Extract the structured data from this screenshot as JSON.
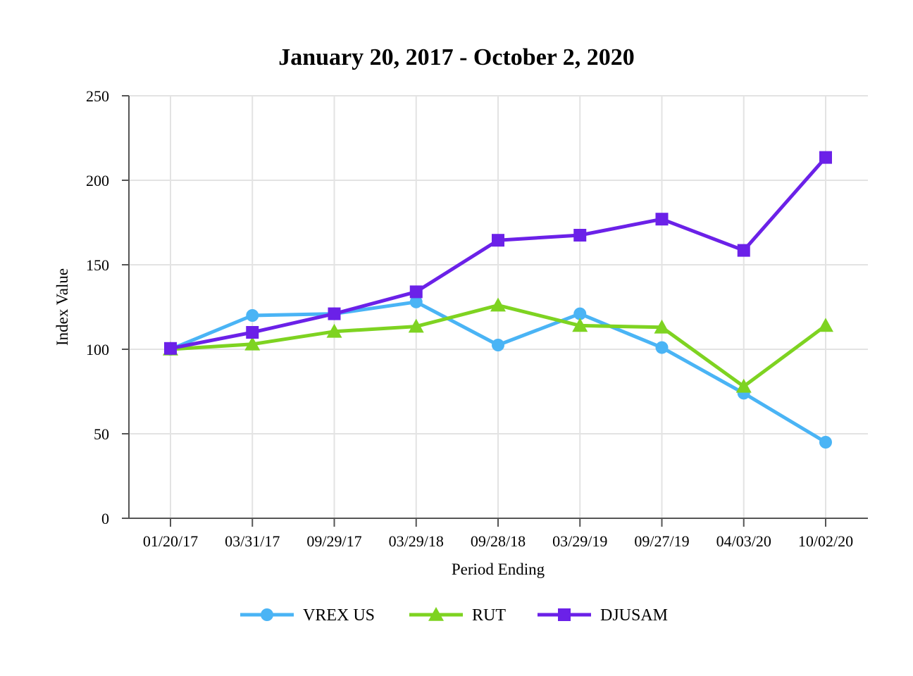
{
  "chart_data": {
    "type": "line",
    "title": "January 20, 2017 - October 2, 2020",
    "xlabel": "Period Ending",
    "ylabel": "Index Value",
    "categories": [
      "01/20/17",
      "03/31/17",
      "09/29/17",
      "03/29/18",
      "09/28/18",
      "03/29/19",
      "09/27/19",
      "04/03/20",
      "10/02/20"
    ],
    "ylim": [
      0,
      250
    ],
    "yticks": [
      0,
      50,
      100,
      150,
      200,
      250
    ],
    "grid": true,
    "legend_position": "bottom",
    "series": [
      {
        "name": "VREX US",
        "marker": "circle",
        "color": "#4ab4f5",
        "values": [
          100,
          120,
          121,
          128,
          102.5,
          121,
          101,
          74,
          45
        ]
      },
      {
        "name": "RUT",
        "marker": "triangle",
        "color": "#7ed321",
        "values": [
          100,
          103,
          110.5,
          113.5,
          126,
          114,
          113,
          78,
          114
        ]
      },
      {
        "name": "DJUSAM",
        "marker": "square",
        "color": "#6b21e8",
        "values": [
          100.5,
          110,
          121,
          134,
          164.5,
          167.5,
          177,
          158.5,
          213.5
        ]
      }
    ]
  }
}
